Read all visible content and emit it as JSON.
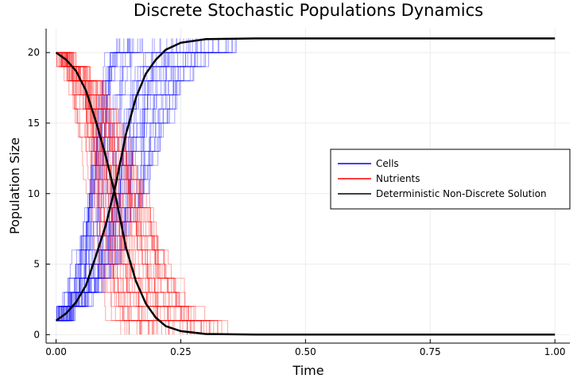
{
  "chart_data": {
    "type": "line",
    "title": "Discrete Stochastic Populations Dynamics",
    "xlabel": "Time",
    "ylabel": "Population Size",
    "xlim": [
      -0.02,
      1.03
    ],
    "ylim": [
      -0.6,
      21.7
    ],
    "x_ticks": [
      0,
      0.25,
      0.5,
      0.75,
      1
    ],
    "x_tick_labels": [
      "0.00",
      "0.25",
      "0.50",
      "0.75",
      "1.00"
    ],
    "y_ticks": [
      0,
      5,
      10,
      15,
      20
    ],
    "y_tick_labels": [
      "0",
      "5",
      "10",
      "15",
      "20"
    ],
    "grid": true,
    "legend_position": "right",
    "stochastic_runs": 50,
    "series": [
      {
        "name": "Cells",
        "color": "#0000ff",
        "style": "step-ensemble",
        "start": 1,
        "end": 21,
        "transition_time_range": [
          0,
          0.4
        ]
      },
      {
        "name": "Nutrients",
        "color": "#ff0000",
        "style": "step-ensemble",
        "start": 20,
        "end": 0,
        "transition_time_range": [
          0,
          0.41
        ]
      },
      {
        "name": "Deterministic Non-Discrete Solution",
        "color": "#000000",
        "style": "line",
        "curves": [
          {
            "x": [
              0,
              0.02,
              0.04,
              0.06,
              0.08,
              0.1,
              0.12,
              0.14,
              0.16,
              0.18,
              0.2,
              0.22,
              0.25,
              0.3,
              0.4,
              0.5,
              0.75,
              1.0
            ],
            "y": [
              1.0,
              1.5,
              2.3,
              3.5,
              5.6,
              7.8,
              10.7,
              14.2,
              16.8,
              18.5,
              19.5,
              20.2,
              20.7,
              20.95,
              21.0,
              21.0,
              21.0,
              21.0
            ]
          },
          {
            "x": [
              0,
              0.02,
              0.04,
              0.06,
              0.08,
              0.1,
              0.12,
              0.14,
              0.16,
              0.18,
              0.2,
              0.22,
              0.25,
              0.3,
              0.4,
              0.5,
              0.75,
              1.0
            ],
            "y": [
              20.0,
              19.5,
              18.7,
              17.3,
              15.1,
              12.6,
              9.7,
              6.2,
              3.8,
              2.2,
              1.2,
              0.6,
              0.25,
              0.05,
              0.0,
              0.0,
              0.0,
              0.0
            ]
          }
        ]
      }
    ]
  }
}
